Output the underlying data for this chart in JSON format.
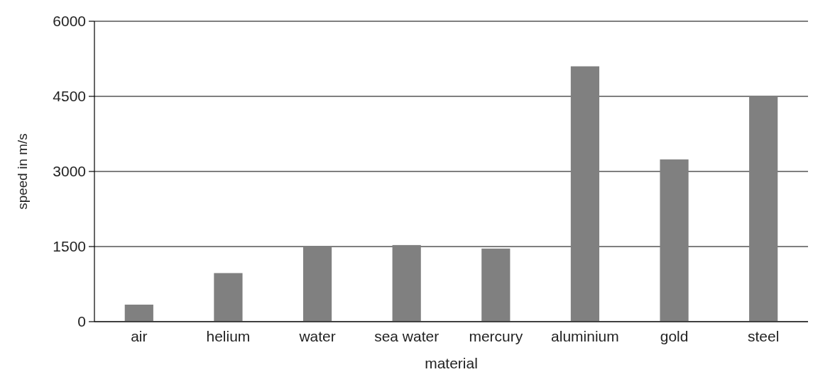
{
  "chart_data": {
    "type": "bar",
    "xlabel": "material",
    "ylabel": "speed in m/s",
    "categories": [
      "air",
      "helium",
      "water",
      "sea water",
      "mercury",
      "aluminium",
      "gold",
      "steel"
    ],
    "values": [
      340,
      970,
      1490,
      1530,
      1460,
      5100,
      3240,
      4500
    ],
    "color": "#808080",
    "ylim": [
      0,
      6000
    ],
    "yticks": [
      0,
      1500,
      3000,
      4500,
      6000
    ],
    "grid": "y"
  }
}
